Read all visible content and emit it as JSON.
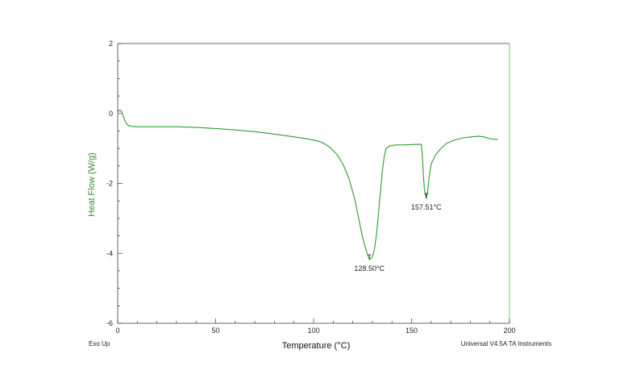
{
  "chart_data": {
    "type": "line",
    "xlabel": "Temperature (°C)",
    "ylabel": "Heat Flow (W/g)",
    "xlim": [
      0,
      200
    ],
    "ylim": [
      -6,
      2
    ],
    "x_ticks": [
      0,
      50,
      100,
      150,
      200
    ],
    "y_ticks": [
      2,
      0,
      -2,
      -4,
      -6
    ],
    "x_tick_labels": [
      "0",
      "50",
      "100",
      "150",
      "200"
    ],
    "y_tick_labels": [
      "2",
      "0",
      "-2",
      "-4",
      "-6"
    ],
    "grid": false,
    "legend": "none",
    "series": [
      {
        "color": "#2e9b2e",
        "points": [
          [
            0,
            0.05
          ],
          [
            1,
            0.1
          ],
          [
            2,
            0.05
          ],
          [
            3,
            -0.1
          ],
          [
            4,
            -0.25
          ],
          [
            5,
            -0.33
          ],
          [
            7,
            -0.37
          ],
          [
            10,
            -0.38
          ],
          [
            20,
            -0.38
          ],
          [
            30,
            -0.38
          ],
          [
            40,
            -0.4
          ],
          [
            50,
            -0.43
          ],
          [
            60,
            -0.47
          ],
          [
            70,
            -0.52
          ],
          [
            80,
            -0.59
          ],
          [
            90,
            -0.67
          ],
          [
            95,
            -0.71
          ],
          [
            100,
            -0.76
          ],
          [
            103,
            -0.8
          ],
          [
            106,
            -0.88
          ],
          [
            109,
            -1.0
          ],
          [
            112,
            -1.18
          ],
          [
            115,
            -1.45
          ],
          [
            118,
            -1.85
          ],
          [
            121,
            -2.45
          ],
          [
            123,
            -3.0
          ],
          [
            125,
            -3.55
          ],
          [
            127,
            -3.95
          ],
          [
            128.5,
            -4.18
          ],
          [
            130,
            -4.1
          ],
          [
            131,
            -3.9
          ],
          [
            132,
            -3.5
          ],
          [
            133,
            -2.95
          ],
          [
            134,
            -2.3
          ],
          [
            135,
            -1.7
          ],
          [
            136,
            -1.25
          ],
          [
            137,
            -1.0
          ],
          [
            139,
            -0.92
          ],
          [
            142,
            -0.9
          ],
          [
            146,
            -0.9
          ],
          [
            150,
            -0.89
          ],
          [
            155,
            -0.88
          ],
          [
            155.5,
            -1.2
          ],
          [
            156,
            -1.75
          ],
          [
            156.6,
            -2.2
          ],
          [
            157.51,
            -2.43
          ],
          [
            158.2,
            -2.25
          ],
          [
            159,
            -1.8
          ],
          [
            160,
            -1.45
          ],
          [
            162,
            -1.2
          ],
          [
            165,
            -1.0
          ],
          [
            168,
            -0.85
          ],
          [
            172,
            -0.76
          ],
          [
            176,
            -0.7
          ],
          [
            180,
            -0.67
          ],
          [
            184,
            -0.65
          ],
          [
            187,
            -0.67
          ],
          [
            190,
            -0.72
          ],
          [
            192,
            -0.74
          ],
          [
            194,
            -0.74
          ]
        ]
      }
    ],
    "annotations": [
      {
        "text": "128.50°C",
        "x": 128.5,
        "y": -4.18
      },
      {
        "text": "157.51°C",
        "x": 157.51,
        "y": -2.43
      }
    ]
  },
  "footer": {
    "left": "Exo Up",
    "right": "Universal V4.5A TA Instruments"
  },
  "colors": {
    "line": "#2e9b2e",
    "frame": "#3a3a3a",
    "right_axis": "#7ec87e",
    "ylabel": "#2e8b2e",
    "background": "#ffffff"
  }
}
